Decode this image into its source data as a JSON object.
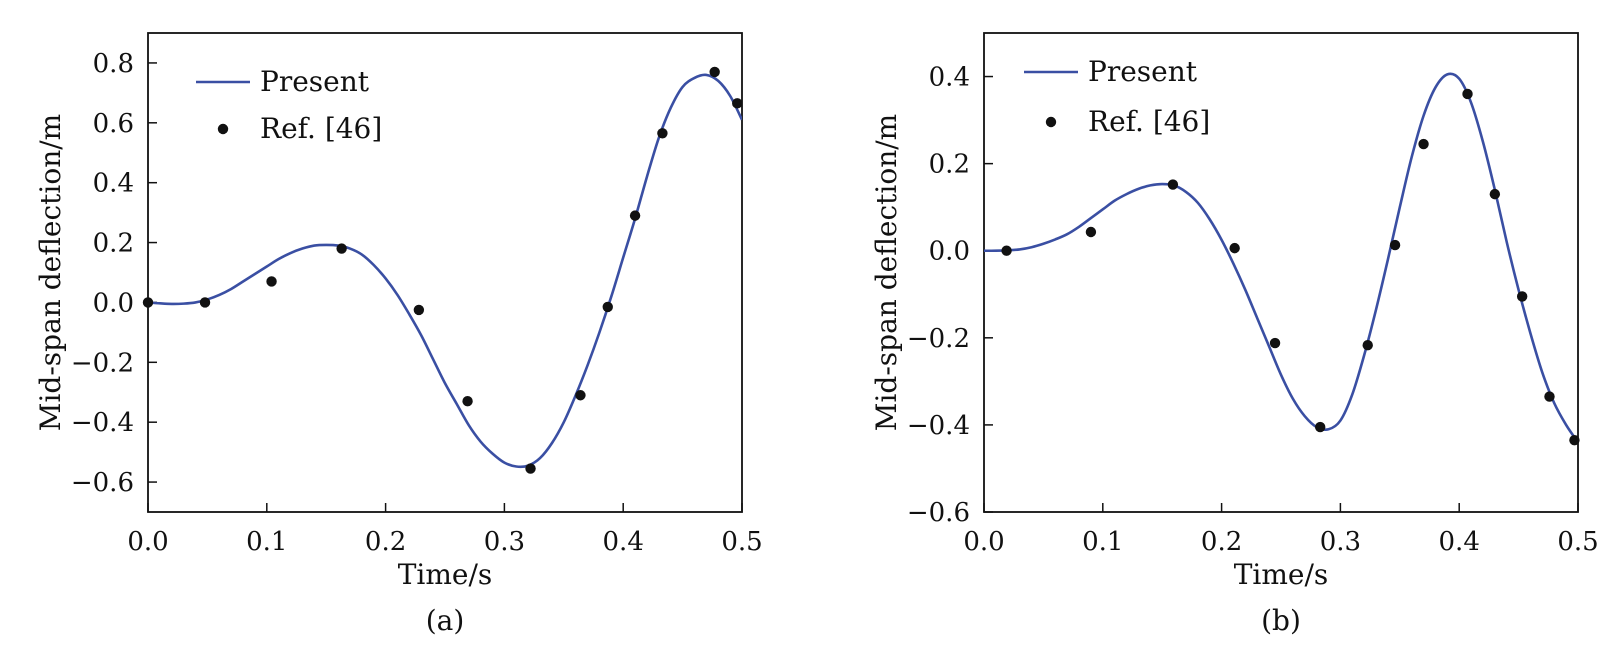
{
  "chart_data": [
    {
      "type": "line",
      "panel_label": "(a)",
      "xlabel": "Time/s",
      "ylabel": "Mid-span deflection/m",
      "xlim": [
        0.0,
        0.5
      ],
      "ylim": [
        -0.7,
        0.9
      ],
      "xticks": [
        0.0,
        0.1,
        0.2,
        0.3,
        0.4,
        0.5
      ],
      "xtick_labels": [
        "0.0",
        "0.1",
        "0.2",
        "0.3",
        "0.4",
        "0.5"
      ],
      "yticks": [
        -0.6,
        -0.4,
        -0.2,
        0.0,
        0.2,
        0.4,
        0.6,
        0.8
      ],
      "ytick_labels": [
        "−0.6",
        "−0.4",
        "−0.2",
        "0.0",
        "0.2",
        "0.4",
        "0.6",
        "0.8"
      ],
      "legend_position": "top-left",
      "colors": {
        "line": "#3a4fa3",
        "marker": "#111111"
      },
      "series": [
        {
          "name": "Present",
          "kind": "line",
          "x": [
            0.0,
            0.01,
            0.02,
            0.03,
            0.04,
            0.05,
            0.06,
            0.07,
            0.08,
            0.09,
            0.1,
            0.11,
            0.12,
            0.13,
            0.14,
            0.15,
            0.16,
            0.17,
            0.18,
            0.19,
            0.2,
            0.21,
            0.22,
            0.23,
            0.24,
            0.25,
            0.26,
            0.27,
            0.28,
            0.29,
            0.3,
            0.31,
            0.32,
            0.33,
            0.34,
            0.35,
            0.36,
            0.37,
            0.38,
            0.39,
            0.4,
            0.41,
            0.42,
            0.43,
            0.44,
            0.45,
            0.46,
            0.47,
            0.48,
            0.49,
            0.5
          ],
          "y": [
            0.0,
            -0.003,
            -0.005,
            -0.004,
            0.0,
            0.01,
            0.025,
            0.045,
            0.07,
            0.095,
            0.12,
            0.145,
            0.165,
            0.18,
            0.19,
            0.192,
            0.19,
            0.18,
            0.16,
            0.125,
            0.08,
            0.025,
            -0.04,
            -0.11,
            -0.19,
            -0.27,
            -0.34,
            -0.41,
            -0.465,
            -0.505,
            -0.535,
            -0.548,
            -0.545,
            -0.52,
            -0.47,
            -0.4,
            -0.31,
            -0.21,
            -0.1,
            0.02,
            0.15,
            0.28,
            0.42,
            0.55,
            0.65,
            0.72,
            0.75,
            0.76,
            0.74,
            0.69,
            0.61
          ]
        },
        {
          "name": "Ref. [46]",
          "kind": "scatter",
          "x": [
            0.0,
            0.048,
            0.104,
            0.163,
            0.228,
            0.269,
            0.322,
            0.364,
            0.387,
            0.41,
            0.433,
            0.477,
            0.496
          ],
          "y": [
            0.0,
            0.0,
            0.07,
            0.18,
            -0.025,
            -0.33,
            -0.555,
            -0.31,
            -0.015,
            0.29,
            0.565,
            0.77,
            0.665
          ]
        }
      ]
    },
    {
      "type": "line",
      "panel_label": "(b)",
      "xlabel": "Time/s",
      "ylabel": "Mid-span deflection/m",
      "xlim": [
        0.0,
        0.5
      ],
      "ylim": [
        -0.6,
        0.5
      ],
      "xticks": [
        0.0,
        0.1,
        0.2,
        0.3,
        0.4,
        0.5
      ],
      "xtick_labels": [
        "0.0",
        "0.1",
        "0.2",
        "0.3",
        "0.4",
        "0.5"
      ],
      "yticks": [
        -0.6,
        -0.4,
        -0.2,
        0.0,
        0.2,
        0.4
      ],
      "ytick_labels": [
        "−0.6",
        "−0.4",
        "−0.2",
        "0.0",
        "0.2",
        "0.4"
      ],
      "legend_position": "top-left",
      "colors": {
        "line": "#3a4fa3",
        "marker": "#111111"
      },
      "series": [
        {
          "name": "Present",
          "kind": "line",
          "x": [
            0.0,
            0.01,
            0.02,
            0.03,
            0.04,
            0.05,
            0.06,
            0.07,
            0.08,
            0.09,
            0.1,
            0.11,
            0.12,
            0.13,
            0.14,
            0.15,
            0.16,
            0.17,
            0.18,
            0.19,
            0.2,
            0.21,
            0.22,
            0.23,
            0.24,
            0.25,
            0.26,
            0.27,
            0.28,
            0.29,
            0.3,
            0.31,
            0.32,
            0.33,
            0.34,
            0.35,
            0.36,
            0.37,
            0.38,
            0.39,
            0.4,
            0.41,
            0.42,
            0.43,
            0.44,
            0.45,
            0.46,
            0.47,
            0.48,
            0.49,
            0.5
          ],
          "y": [
            0.0,
            0.0,
            0.001,
            0.003,
            0.008,
            0.016,
            0.026,
            0.038,
            0.055,
            0.075,
            0.095,
            0.115,
            0.13,
            0.142,
            0.15,
            0.153,
            0.15,
            0.135,
            0.11,
            0.072,
            0.025,
            -0.03,
            -0.09,
            -0.155,
            -0.22,
            -0.285,
            -0.34,
            -0.38,
            -0.405,
            -0.41,
            -0.39,
            -0.33,
            -0.24,
            -0.135,
            -0.02,
            0.1,
            0.215,
            0.31,
            0.375,
            0.405,
            0.395,
            0.34,
            0.25,
            0.14,
            0.02,
            -0.09,
            -0.19,
            -0.28,
            -0.35,
            -0.4,
            -0.44
          ]
        },
        {
          "name": "Ref. [46]",
          "kind": "scatter",
          "x": [
            0.019,
            0.09,
            0.159,
            0.211,
            0.245,
            0.283,
            0.323,
            0.346,
            0.37,
            0.407,
            0.43,
            0.453,
            0.476,
            0.497
          ],
          "y": [
            0.0,
            0.043,
            0.152,
            0.006,
            -0.212,
            -0.405,
            -0.217,
            0.013,
            0.245,
            0.36,
            0.13,
            -0.105,
            -0.335,
            -0.435
          ]
        }
      ]
    }
  ]
}
